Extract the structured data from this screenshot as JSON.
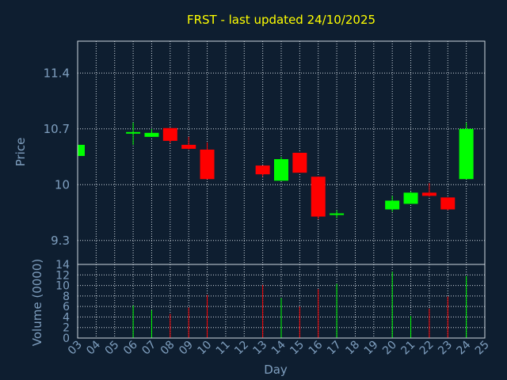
{
  "chart_data": {
    "type": "candlestick",
    "title": "FRST - last updated 24/10/2025",
    "ylabel": "Price",
    "volume_label": "Volume (0000)",
    "xlabel": "Day",
    "ylim": [
      9.0,
      11.8
    ],
    "volume_ylim": [
      0,
      14
    ],
    "price_ticks": [
      "9.3",
      "10",
      "10.7",
      "11.4"
    ],
    "volume_ticks": [
      "0",
      "2",
      "4",
      "6",
      "8",
      "10",
      "12",
      "14"
    ],
    "x_ticks": [
      "03",
      "04",
      "05",
      "06",
      "07",
      "08",
      "09",
      "10",
      "11",
      "12",
      "13",
      "14",
      "15",
      "16",
      "17",
      "18",
      "19",
      "20",
      "21",
      "22",
      "23",
      "24",
      "25"
    ],
    "colors": {
      "up": "#00ff00",
      "down": "#ff0000",
      "background": "#0e1e30"
    },
    "candles": [
      {
        "day": "03",
        "open": 10.36,
        "high": 10.5,
        "low": 10.36,
        "close": 10.5,
        "volume": 0
      },
      {
        "day": "06",
        "open": 10.65,
        "high": 10.78,
        "low": 10.5,
        "close": 10.66,
        "volume": 6.2
      },
      {
        "day": "07",
        "open": 10.6,
        "high": 10.7,
        "low": 10.6,
        "close": 10.65,
        "volume": 5.3
      },
      {
        "day": "08",
        "open": 10.71,
        "high": 10.71,
        "low": 10.52,
        "close": 10.55,
        "volume": 4.6
      },
      {
        "day": "09",
        "open": 10.5,
        "high": 10.6,
        "low": 10.44,
        "close": 10.45,
        "volume": 5.8
      },
      {
        "day": "10",
        "open": 10.44,
        "high": 10.53,
        "low": 10.07,
        "close": 10.07,
        "volume": 8.2
      },
      {
        "day": "13",
        "open": 10.24,
        "high": 10.24,
        "low": 10.1,
        "close": 10.13,
        "volume": 10.1
      },
      {
        "day": "14",
        "open": 10.05,
        "high": 10.35,
        "low": 10.05,
        "close": 10.32,
        "volume": 7.6
      },
      {
        "day": "15",
        "open": 10.4,
        "high": 10.4,
        "low": 10.15,
        "close": 10.15,
        "volume": 6.0
      },
      {
        "day": "16",
        "open": 10.1,
        "high": 10.1,
        "low": 9.57,
        "close": 9.6,
        "volume": 9.3
      },
      {
        "day": "17",
        "open": 9.62,
        "high": 9.68,
        "low": 9.58,
        "close": 9.64,
        "volume": 10.3
      },
      {
        "day": "20",
        "open": 9.69,
        "high": 9.86,
        "low": 9.66,
        "close": 9.8,
        "volume": 12.6
      },
      {
        "day": "21",
        "open": 9.76,
        "high": 9.91,
        "low": 9.76,
        "close": 9.9,
        "volume": 4.2
      },
      {
        "day": "22",
        "open": 9.9,
        "high": 10.02,
        "low": 9.85,
        "close": 9.86,
        "volume": 5.6
      },
      {
        "day": "23",
        "open": 9.84,
        "high": 9.84,
        "low": 9.68,
        "close": 9.69,
        "volume": 7.9
      },
      {
        "day": "24",
        "open": 10.07,
        "high": 10.78,
        "low": 10.07,
        "close": 10.7,
        "volume": 11.8
      }
    ]
  }
}
